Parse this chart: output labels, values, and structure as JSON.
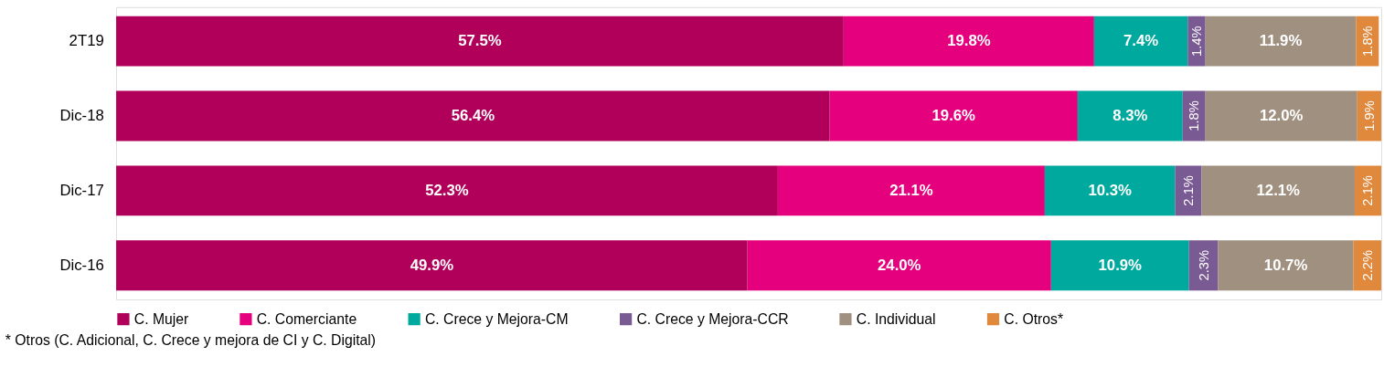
{
  "chart_data": {
    "type": "bar",
    "orientation": "horizontal",
    "stacked": true,
    "categories": [
      "2T19",
      "Dic-18",
      "Dic-17",
      "Dic-16"
    ],
    "xlim": [
      0,
      100
    ],
    "tick_labels": "y",
    "legend": "bottom",
    "grid": false,
    "series": [
      {
        "name": "C. Mujer",
        "color": "#b0005a",
        "values": [
          57.5,
          56.4,
          52.3,
          49.9
        ],
        "value_labels": [
          "57.5%",
          "56.4%",
          "52.3%",
          "49.9%"
        ]
      },
      {
        "name": "C. Comerciante",
        "color": "#e5007d",
        "values": [
          19.8,
          19.6,
          21.1,
          24.0
        ],
        "value_labels": [
          "19.8%",
          "19.6%",
          "21.1%",
          "24.0%"
        ]
      },
      {
        "name": "C. Crece y Mejora-CM",
        "color": "#00a99d",
        "values": [
          7.4,
          8.3,
          10.3,
          10.9
        ],
        "value_labels": [
          "7.4%",
          "8.3%",
          "10.3%",
          "10.9%"
        ]
      },
      {
        "name": "C. Crece y Mejora-CCR",
        "color": "#7a5a93",
        "values": [
          1.4,
          1.8,
          2.1,
          2.3
        ],
        "value_labels": [
          "1.4%",
          "1.8%",
          "2.1%",
          "2.3%"
        ]
      },
      {
        "name": "C. Individual",
        "color": "#a09080",
        "values": [
          11.9,
          12.0,
          12.1,
          10.7
        ],
        "value_labels": [
          "11.9%",
          "12.0%",
          "12.1%",
          "10.7%"
        ]
      },
      {
        "name": "C. Otros*",
        "color": "#e0883c",
        "values": [
          1.8,
          1.9,
          2.1,
          2.2
        ],
        "value_labels": [
          "1.8%",
          "1.9%",
          "2.1%",
          "2.2%"
        ]
      }
    ],
    "annotations": [
      "* Otros (C. Adicional, C. Crece y mejora de CI y C. Digital)"
    ]
  }
}
